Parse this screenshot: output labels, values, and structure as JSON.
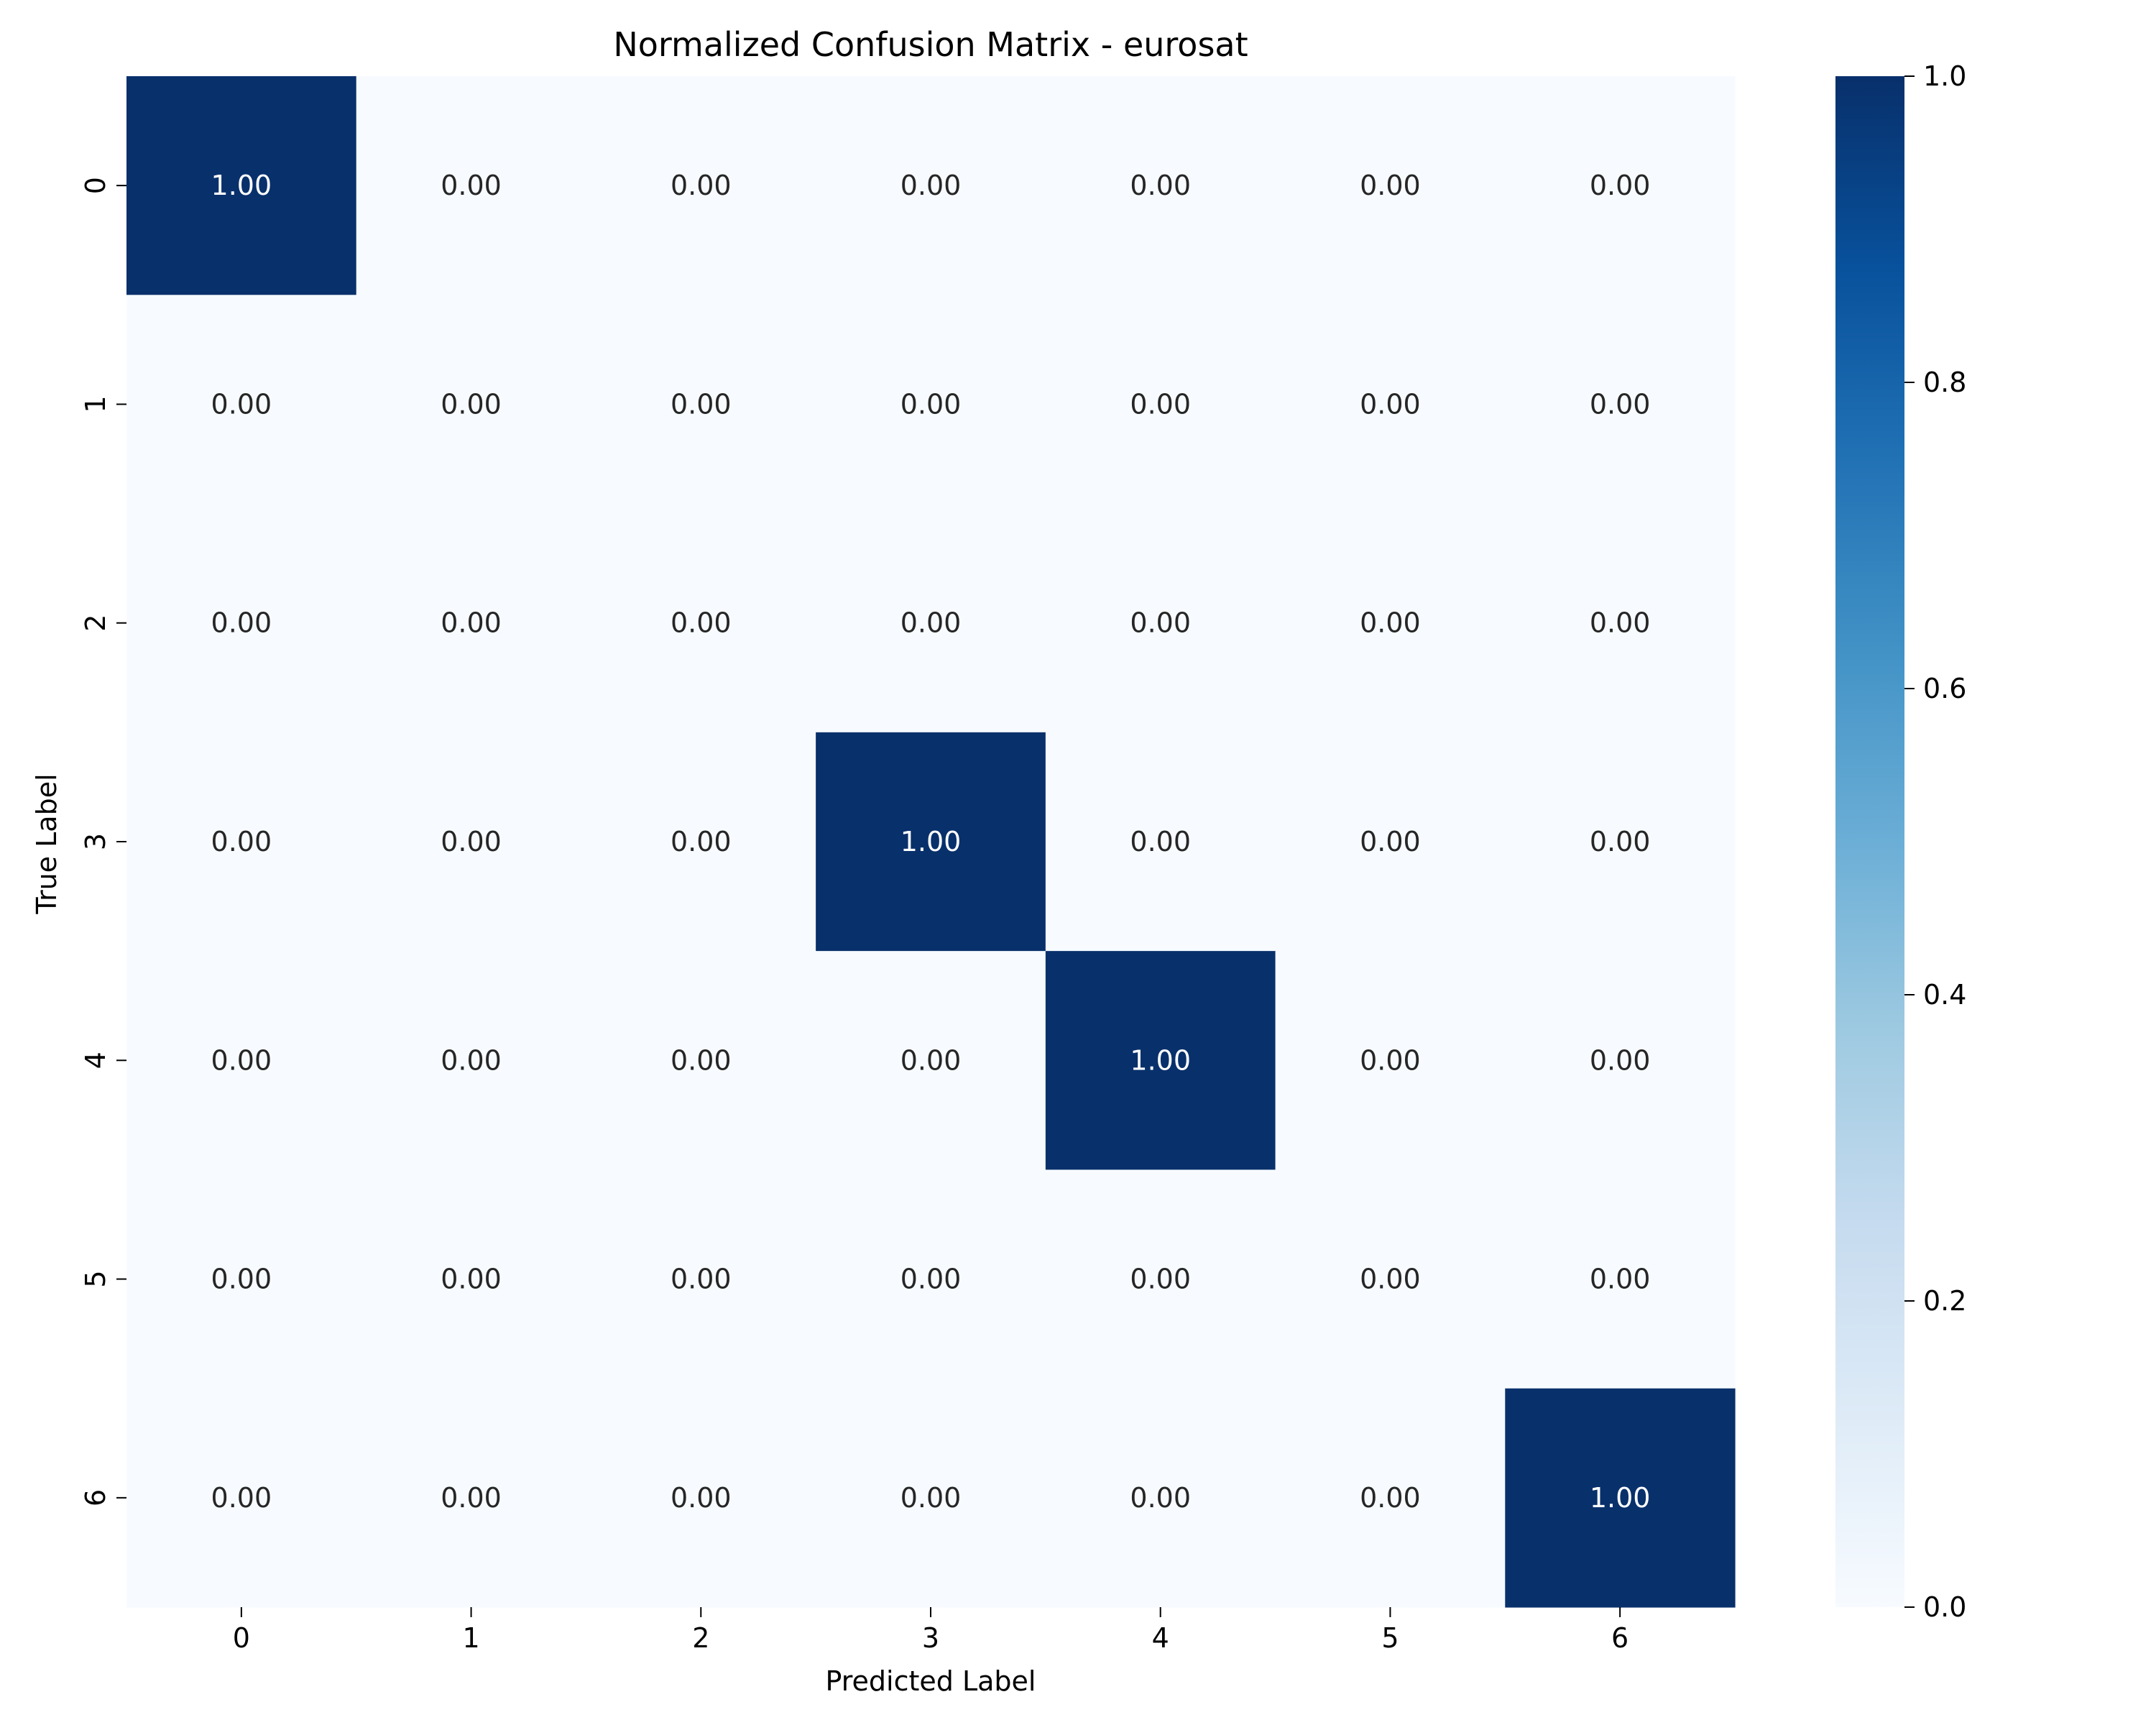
{
  "chart_data": {
    "type": "heatmap",
    "title": "Normalized Confusion Matrix - eurosat",
    "xlabel": "Predicted Label",
    "ylabel": "True Label",
    "x_categories": [
      "0",
      "1",
      "2",
      "3",
      "4",
      "5",
      "6"
    ],
    "y_categories": [
      "0",
      "1",
      "2",
      "3",
      "4",
      "5",
      "6"
    ],
    "values": [
      [
        1.0,
        0.0,
        0.0,
        0.0,
        0.0,
        0.0,
        0.0
      ],
      [
        0.0,
        0.0,
        0.0,
        0.0,
        0.0,
        0.0,
        0.0
      ],
      [
        0.0,
        0.0,
        0.0,
        0.0,
        0.0,
        0.0,
        0.0
      ],
      [
        0.0,
        0.0,
        0.0,
        1.0,
        0.0,
        0.0,
        0.0
      ],
      [
        0.0,
        0.0,
        0.0,
        0.0,
        1.0,
        0.0,
        0.0
      ],
      [
        0.0,
        0.0,
        0.0,
        0.0,
        0.0,
        0.0,
        0.0
      ],
      [
        0.0,
        0.0,
        0.0,
        0.0,
        0.0,
        0.0,
        1.0
      ]
    ],
    "value_format": "0.00",
    "colorbar": {
      "range": [
        0.0,
        1.0
      ],
      "ticks": [
        0.0,
        0.2,
        0.4,
        0.6,
        0.8,
        1.0
      ],
      "tick_labels": [
        "0.0",
        "0.2",
        "0.4",
        "0.6",
        "0.8",
        "1.0"
      ],
      "colormap": "Blues",
      "colormap_stops": [
        "#f7fbff",
        "#deebf7",
        "#c6dbef",
        "#9ecae1",
        "#6baed6",
        "#4292c6",
        "#2171b5",
        "#08519c",
        "#08306b"
      ]
    },
    "annotation_colors": {
      "light_cell_text": "#262626",
      "dark_cell_text": "#ffffff"
    },
    "grid": false,
    "legend": "colorbar-right"
  }
}
